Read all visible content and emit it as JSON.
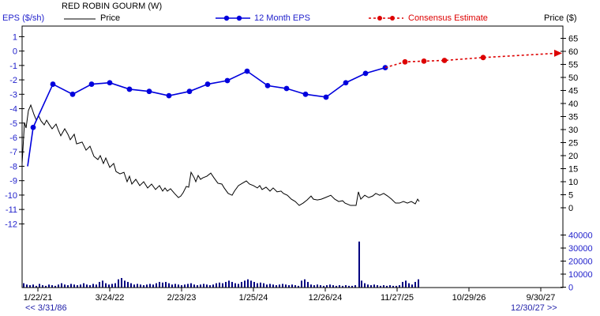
{
  "window": {
    "title": "RED ROBIN GOURM (W)"
  },
  "legend": {
    "eps_axis_label": "EPS ($/sh)",
    "price_label": "Price",
    "eps12_label": "12 Month EPS",
    "consensus_label": "Consensus Estimate",
    "price_axis_label": "Price ($)"
  },
  "nav": {
    "range_start": "<< 3/31/86",
    "range_end": "12/30/27 >>"
  },
  "colors": {
    "eps_line": "#0000dd",
    "consensus_line": "#dd0000",
    "price_line": "#000000",
    "volume_bar": "#000080",
    "blue_text": "#2222cc",
    "navy_text": "#2222aa",
    "frame": "#000000"
  },
  "chart_data": {
    "type": "line",
    "title": "RED ROBIN GOURM (W)",
    "left_axis": {
      "label": "EPS ($/sh)",
      "units": "$/sh",
      "ticks": [
        1,
        0,
        -1,
        -2,
        -3,
        -4,
        -5,
        -6,
        -7,
        -8,
        -9,
        -10,
        -11,
        -12
      ],
      "range": [
        -12,
        1
      ]
    },
    "right_axis": {
      "label": "Price ($)",
      "units": "$",
      "ticks": [
        65,
        60,
        55,
        50,
        45,
        40,
        35,
        30,
        25,
        20,
        15,
        10,
        5,
        0
      ],
      "range": [
        0,
        65
      ]
    },
    "volume_axis": {
      "ticks": [
        40000,
        30000,
        20000,
        10000,
        0
      ],
      "range": [
        0,
        40000
      ]
    },
    "x_axis": {
      "labels": [
        "1/22/21",
        "3/24/22",
        "2/23/23",
        "1/25/24",
        "12/26/24",
        "11/27/25",
        "10/29/26",
        "9/30/27"
      ],
      "full_range": [
        "3/31/86",
        "12/30/27"
      ]
    },
    "grid": false,
    "legend_position": "top",
    "series": [
      {
        "name": "Price",
        "axis": "price",
        "color": "#000000",
        "style": "solid",
        "markers": false,
        "points": [
          [
            28,
            17.0
          ],
          [
            31,
            32.7
          ],
          [
            33,
            30.6
          ],
          [
            36,
            37.3
          ],
          [
            39,
            39.4
          ],
          [
            43,
            35.8
          ],
          [
            46,
            33.6
          ],
          [
            49,
            35.2
          ],
          [
            52,
            33.3
          ],
          [
            56,
            31.8
          ],
          [
            59,
            33.6
          ],
          [
            62,
            32.1
          ],
          [
            66,
            30.3
          ],
          [
            71,
            32.1
          ],
          [
            74,
            29.7
          ],
          [
            77,
            27.6
          ],
          [
            82,
            30.3
          ],
          [
            86,
            28.2
          ],
          [
            89,
            26.1
          ],
          [
            94,
            28.2
          ],
          [
            97,
            24.5
          ],
          [
            104,
            25.2
          ],
          [
            109,
            22.1
          ],
          [
            114,
            23.6
          ],
          [
            119,
            19.7
          ],
          [
            124,
            18.5
          ],
          [
            127,
            20.0
          ],
          [
            131,
            17.0
          ],
          [
            134,
            19.1
          ],
          [
            139,
            15.5
          ],
          [
            144,
            17.0
          ],
          [
            147,
            13.9
          ],
          [
            152,
            13.0
          ],
          [
            157,
            13.6
          ],
          [
            161,
            10.0
          ],
          [
            164,
            12.1
          ],
          [
            167,
            9.1
          ],
          [
            172,
            10.9
          ],
          [
            177,
            8.5
          ],
          [
            182,
            10.0
          ],
          [
            187,
            7.6
          ],
          [
            192,
            9.1
          ],
          [
            197,
            7.0
          ],
          [
            202,
            8.5
          ],
          [
            206,
            6.4
          ],
          [
            209,
            7.6
          ],
          [
            212,
            6.4
          ],
          [
            216,
            7.3
          ],
          [
            221,
            5.5
          ],
          [
            226,
            3.9
          ],
          [
            229,
            4.5
          ],
          [
            232,
            5.8
          ],
          [
            236,
            8.2
          ],
          [
            239,
            7.9
          ],
          [
            242,
            13.6
          ],
          [
            246,
            11.5
          ],
          [
            248,
            10.0
          ],
          [
            251,
            12.4
          ],
          [
            254,
            10.9
          ],
          [
            257,
            11.5
          ],
          [
            262,
            12.1
          ],
          [
            267,
            13.3
          ],
          [
            271,
            11.5
          ],
          [
            276,
            9.4
          ],
          [
            281,
            9.1
          ],
          [
            284,
            7.6
          ],
          [
            289,
            5.5
          ],
          [
            294,
            4.8
          ],
          [
            297,
            6.4
          ],
          [
            302,
            8.5
          ],
          [
            307,
            9.4
          ],
          [
            312,
            10.3
          ],
          [
            316,
            9.1
          ],
          [
            321,
            8.5
          ],
          [
            326,
            7.6
          ],
          [
            329,
            8.5
          ],
          [
            332,
            7.0
          ],
          [
            337,
            7.9
          ],
          [
            342,
            6.4
          ],
          [
            346,
            7.6
          ],
          [
            351,
            6.1
          ],
          [
            356,
            6.4
          ],
          [
            359,
            5.5
          ],
          [
            364,
            4.8
          ],
          [
            369,
            3.3
          ],
          [
            374,
            2.4
          ],
          [
            377,
            1.5
          ],
          [
            379,
            0.9
          ],
          [
            384,
            1.8
          ],
          [
            389,
            3.0
          ],
          [
            394,
            4.5
          ],
          [
            397,
            3.3
          ],
          [
            402,
            3.0
          ],
          [
            407,
            3.3
          ],
          [
            412,
            3.9
          ],
          [
            419,
            4.8
          ],
          [
            424,
            3.3
          ],
          [
            429,
            2.4
          ],
          [
            434,
            2.7
          ],
          [
            437,
            1.8
          ],
          [
            444,
            0.9
          ],
          [
            451,
            0.9
          ],
          [
            454,
            6.1
          ],
          [
            457,
            3.3
          ],
          [
            462,
            4.8
          ],
          [
            467,
            3.9
          ],
          [
            472,
            4.5
          ],
          [
            476,
            5.5
          ],
          [
            481,
            4.8
          ],
          [
            486,
            5.5
          ],
          [
            491,
            4.5
          ],
          [
            496,
            3.3
          ],
          [
            501,
            1.8
          ],
          [
            506,
            1.8
          ],
          [
            511,
            2.4
          ],
          [
            516,
            1.8
          ],
          [
            521,
            2.4
          ],
          [
            526,
            1.5
          ],
          [
            529,
            3.3
          ],
          [
            531,
            2.4
          ]
        ]
      },
      {
        "name": "12 Month EPS",
        "axis": "eps",
        "color": "#0000dd",
        "style": "solid",
        "markers": true,
        "marker_from_index": 1,
        "points": [
          [
            35,
            -8.0
          ],
          [
            42,
            -5.3
          ],
          [
            67,
            -2.3
          ],
          [
            92,
            -3.0
          ],
          [
            116,
            -2.3
          ],
          [
            139,
            -2.2
          ],
          [
            164,
            -2.65
          ],
          [
            189,
            -2.8
          ],
          [
            214,
            -3.1
          ],
          [
            240,
            -2.8
          ],
          [
            263,
            -2.3
          ],
          [
            288,
            -2.05
          ],
          [
            313,
            -1.4
          ],
          [
            339,
            -2.4
          ],
          [
            363,
            -2.6
          ],
          [
            387,
            -3.0
          ],
          [
            413,
            -3.2
          ],
          [
            438,
            -2.2
          ],
          [
            463,
            -1.55
          ],
          [
            488,
            -1.15
          ]
        ]
      },
      {
        "name": "Consensus Estimate",
        "axis": "eps",
        "color": "#dd0000",
        "style": "dashed",
        "markers": true,
        "marker_from_index": 1,
        "marker_to_index": 4,
        "arrow_end": true,
        "points": [
          [
            488,
            -1.15
          ],
          [
            513,
            -0.75
          ],
          [
            537,
            -0.7
          ],
          [
            563,
            -0.65
          ],
          [
            612,
            -0.45
          ],
          [
            706,
            -0.15
          ]
        ]
      }
    ],
    "volume": {
      "color": "#000080",
      "units": "thousands",
      "bars": [
        [
          30,
          3
        ],
        [
          34,
          2
        ],
        [
          38,
          1.5
        ],
        [
          42,
          2
        ],
        [
          46,
          1
        ],
        [
          50,
          2.5
        ],
        [
          54,
          1.5
        ],
        [
          58,
          1
        ],
        [
          62,
          2
        ],
        [
          66,
          1.5
        ],
        [
          70,
          1
        ],
        [
          74,
          2
        ],
        [
          78,
          3
        ],
        [
          82,
          2
        ],
        [
          86,
          1.5
        ],
        [
          90,
          2.5
        ],
        [
          94,
          2
        ],
        [
          98,
          1.5
        ],
        [
          102,
          2
        ],
        [
          106,
          3
        ],
        [
          110,
          2
        ],
        [
          114,
          1.5
        ],
        [
          118,
          2.5
        ],
        [
          122,
          2
        ],
        [
          126,
          4
        ],
        [
          130,
          5
        ],
        [
          134,
          3
        ],
        [
          138,
          2
        ],
        [
          142,
          2.5
        ],
        [
          146,
          3
        ],
        [
          150,
          6
        ],
        [
          154,
          7
        ],
        [
          158,
          5
        ],
        [
          162,
          4
        ],
        [
          166,
          3
        ],
        [
          170,
          2
        ],
        [
          174,
          2.5
        ],
        [
          178,
          2
        ],
        [
          182,
          1.5
        ],
        [
          186,
          2
        ],
        [
          190,
          2.5
        ],
        [
          194,
          2
        ],
        [
          198,
          3
        ],
        [
          202,
          4
        ],
        [
          206,
          3.5
        ],
        [
          210,
          4
        ],
        [
          214,
          3
        ],
        [
          218,
          2
        ],
        [
          222,
          2.5
        ],
        [
          226,
          2
        ],
        [
          230,
          1.5
        ],
        [
          234,
          2
        ],
        [
          238,
          2.5
        ],
        [
          242,
          3
        ],
        [
          246,
          2
        ],
        [
          250,
          1.5
        ],
        [
          254,
          2
        ],
        [
          258,
          2.5
        ],
        [
          262,
          2
        ],
        [
          266,
          1.5
        ],
        [
          270,
          2
        ],
        [
          274,
          3
        ],
        [
          278,
          3.5
        ],
        [
          282,
          3
        ],
        [
          286,
          4
        ],
        [
          290,
          5
        ],
        [
          294,
          4
        ],
        [
          298,
          3
        ],
        [
          302,
          2.5
        ],
        [
          306,
          4
        ],
        [
          310,
          5
        ],
        [
          314,
          6
        ],
        [
          318,
          5
        ],
        [
          322,
          4
        ],
        [
          326,
          3
        ],
        [
          330,
          3.5
        ],
        [
          334,
          3
        ],
        [
          338,
          2
        ],
        [
          342,
          2.5
        ],
        [
          346,
          2
        ],
        [
          350,
          1.5
        ],
        [
          354,
          2
        ],
        [
          358,
          2.5
        ],
        [
          362,
          2
        ],
        [
          366,
          1.5
        ],
        [
          370,
          2
        ],
        [
          374,
          1.5
        ],
        [
          378,
          1
        ],
        [
          382,
          5
        ],
        [
          386,
          6
        ],
        [
          390,
          4
        ],
        [
          394,
          2
        ],
        [
          398,
          1.5
        ],
        [
          402,
          2
        ],
        [
          406,
          1.5
        ],
        [
          410,
          1
        ],
        [
          414,
          1.5
        ],
        [
          418,
          2
        ],
        [
          422,
          1.5
        ],
        [
          426,
          1
        ],
        [
          430,
          1.5
        ],
        [
          434,
          1
        ],
        [
          438,
          1.5
        ],
        [
          442,
          1
        ],
        [
          446,
          1
        ],
        [
          450,
          1.5
        ],
        [
          455,
          35
        ],
        [
          458,
          5
        ],
        [
          462,
          3
        ],
        [
          466,
          2
        ],
        [
          470,
          1.5
        ],
        [
          474,
          2
        ],
        [
          478,
          1.5
        ],
        [
          482,
          1
        ],
        [
          486,
          1.5
        ],
        [
          490,
          1
        ],
        [
          494,
          1.5
        ],
        [
          498,
          1
        ],
        [
          502,
          1
        ],
        [
          506,
          1.5
        ],
        [
          510,
          4
        ],
        [
          514,
          5
        ],
        [
          518,
          3
        ],
        [
          522,
          2
        ],
        [
          526,
          4
        ],
        [
          530,
          6
        ]
      ]
    }
  }
}
